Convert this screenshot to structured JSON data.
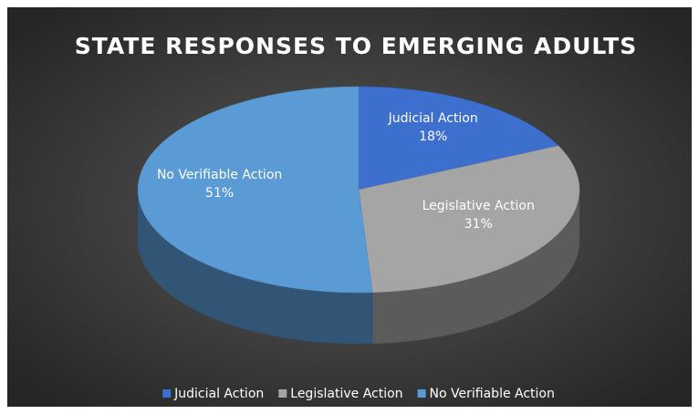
{
  "chart_data": {
    "type": "pie",
    "title": "STATE RESPONSES TO EMERGING ADULTS",
    "categories": [
      "Judicial Action",
      "Legislative Action",
      "No Verifiable Action"
    ],
    "values": [
      18,
      31,
      51
    ],
    "value_labels": [
      "18%",
      "31%",
      "51%"
    ],
    "colors": [
      "#3d6fcf",
      "#a5a5a5",
      "#5b9bd5"
    ],
    "legend": "bottom"
  }
}
